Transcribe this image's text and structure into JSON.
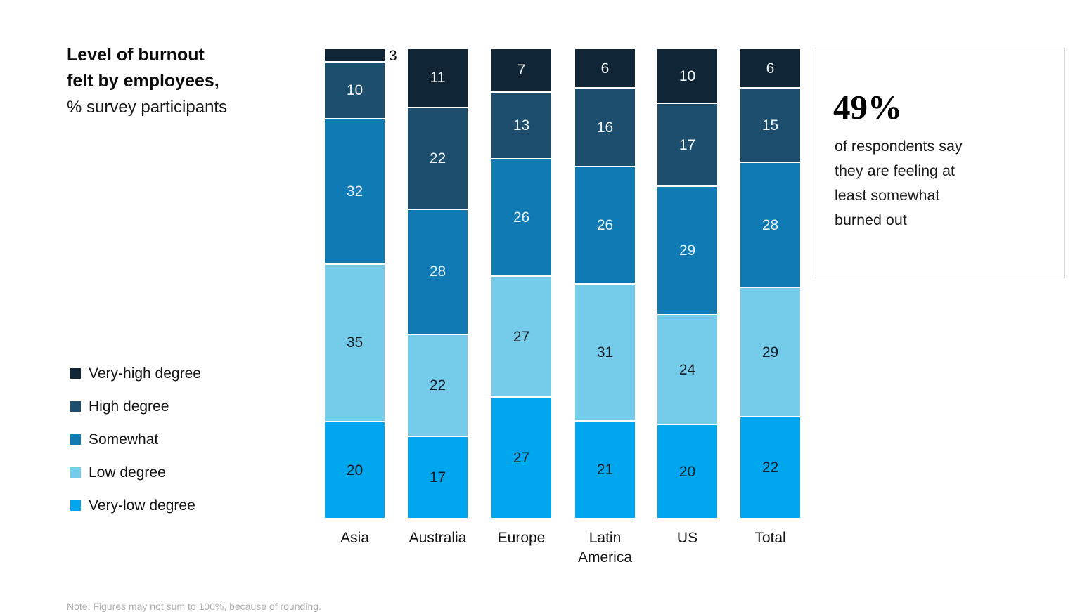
{
  "title": {
    "line1": "Level of burnout",
    "line2": "felt by employees,",
    "subtitle": "% survey participants"
  },
  "callout": {
    "stat": "49%",
    "lines": [
      "of respondents say",
      "they are feeling at",
      "least somewhat",
      "burned out"
    ]
  },
  "footnote": "Note: Figures may not sum to 100%, because of rounding.",
  "chart_data": {
    "type": "bar",
    "stacked": true,
    "title": "Level of burnout felt by employees, % survey participants",
    "categories": [
      "Asia",
      "Australia",
      "Europe",
      "Latin America",
      "US",
      "Total"
    ],
    "series": [
      {
        "name": "Very-high degree",
        "color": "#102636",
        "label_color": "#f2f7fa",
        "values": [
          3,
          11,
          7,
          6,
          10,
          6
        ]
      },
      {
        "name": "High degree",
        "color": "#1d4e6e",
        "label_color": "#f2f7fa",
        "values": [
          10,
          22,
          13,
          16,
          17,
          15
        ]
      },
      {
        "name": "Somewhat",
        "color": "#0f7ab3",
        "label_color": "#e6f3fa",
        "values": [
          32,
          28,
          26,
          26,
          29,
          28
        ]
      },
      {
        "name": "Low degree",
        "color": "#74ccea",
        "label_color": "#131d26",
        "values": [
          35,
          22,
          27,
          31,
          24,
          29
        ]
      },
      {
        "name": "Very-low degree",
        "color": "#00a6ee",
        "label_color": "#131d26",
        "values": [
          20,
          17,
          27,
          21,
          20,
          22
        ]
      }
    ],
    "value_unit": "%",
    "ylim": [
      0,
      100
    ],
    "legend_position": "left",
    "outside_labels": [
      {
        "category_index": 0,
        "series_index": 0
      }
    ]
  }
}
